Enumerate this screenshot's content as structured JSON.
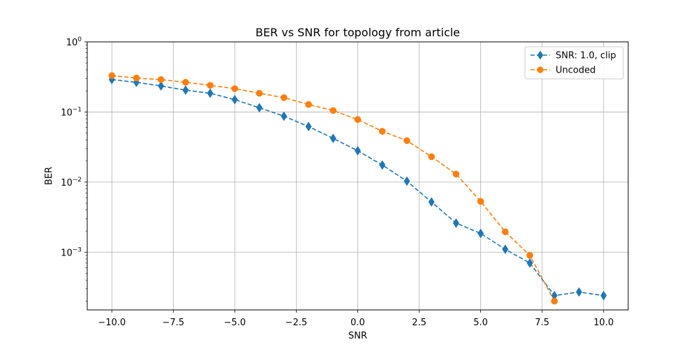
{
  "chart_data": {
    "type": "line",
    "title": "BER vs SNR for topology from article",
    "xlabel": "SNR",
    "ylabel": "BER",
    "yscale": "log",
    "xlim": [
      -11,
      11
    ],
    "ylim": [
      0.00015,
      1
    ],
    "grid": true,
    "legend_position": "top-right",
    "x_ticks": [
      -10.0,
      -7.5,
      -5.0,
      -2.5,
      0.0,
      2.5,
      5.0,
      7.5,
      10.0
    ],
    "x_tick_labels": [
      "−10.0",
      "−7.5",
      "−5.0",
      "−2.5",
      "0.0",
      "2.5",
      "5.0",
      "7.5",
      "10.0"
    ],
    "y_ticks": [
      {
        "value": 0.001,
        "base": "10",
        "exp": "−3"
      },
      {
        "value": 0.01,
        "base": "10",
        "exp": "−2"
      },
      {
        "value": 0.1,
        "base": "10",
        "exp": "−1"
      },
      {
        "value": 1,
        "base": "10",
        "exp": "0"
      }
    ],
    "series": [
      {
        "name": "SNR: 1.0, clip",
        "color": "#1f77b4",
        "marker": "diamond",
        "linestyle": "dashed",
        "x": [
          -10,
          -9,
          -8,
          -7,
          -6,
          -5,
          -4,
          -3,
          -2,
          -1,
          0,
          1,
          2,
          3,
          4,
          5,
          6,
          7,
          8,
          9,
          10
        ],
        "y": [
          0.29,
          0.265,
          0.235,
          0.205,
          0.185,
          0.15,
          0.115,
          0.087,
          0.062,
          0.042,
          0.028,
          0.0175,
          0.0103,
          0.0052,
          0.0026,
          0.00185,
          0.0011,
          0.0007,
          0.00024,
          0.00027,
          0.00024
        ]
      },
      {
        "name": "Uncoded",
        "color": "#ff7f0e",
        "marker": "circle",
        "linestyle": "dashed",
        "x": [
          -10,
          -9,
          -8,
          -7,
          -6,
          -5,
          -4,
          -3,
          -2,
          -1,
          0,
          1,
          2,
          3,
          4,
          5,
          6,
          7,
          8
        ],
        "y": [
          0.33,
          0.305,
          0.29,
          0.265,
          0.24,
          0.215,
          0.185,
          0.16,
          0.128,
          0.105,
          0.078,
          0.053,
          0.039,
          0.023,
          0.013,
          0.0053,
          0.00195,
          0.0009,
          0.0002
        ]
      }
    ]
  }
}
